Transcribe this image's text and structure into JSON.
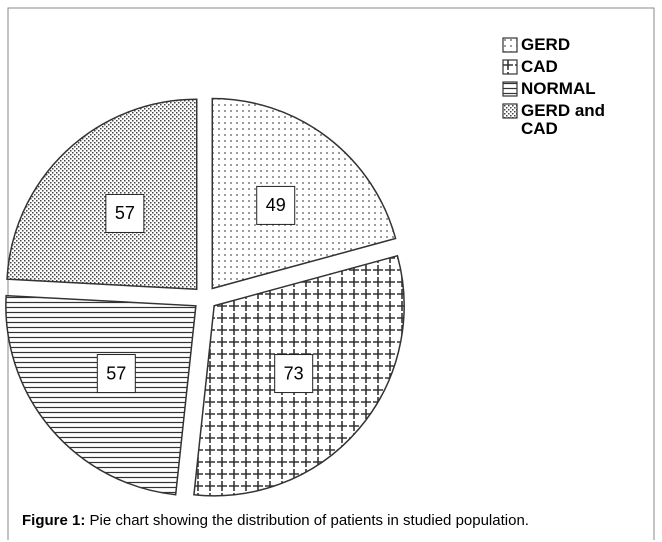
{
  "chart_data": {
    "type": "pie",
    "categories": [
      "GERD",
      "CAD",
      "NORMAL",
      "GERD and CAD"
    ],
    "values": [
      49,
      73,
      57,
      57
    ],
    "patterns": [
      "dots",
      "plus",
      "hlines",
      "checks"
    ],
    "legend": "top-right",
    "caption_label": "Figure 1:",
    "caption": "Pie chart showing the distribution of patients in studied population."
  }
}
